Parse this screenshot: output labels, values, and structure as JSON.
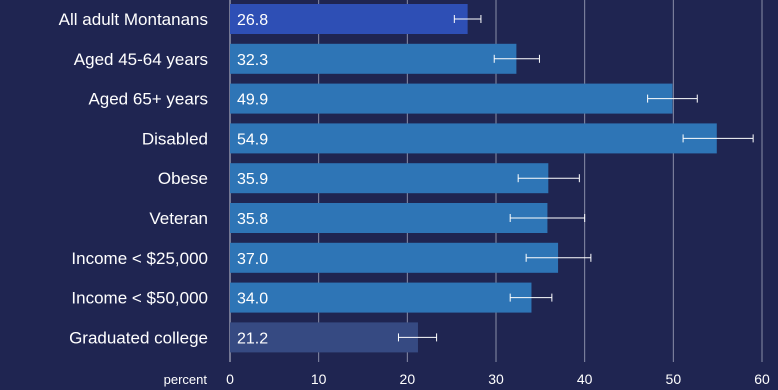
{
  "chart_data": {
    "type": "bar",
    "orientation": "horizontal",
    "title": "",
    "xlabel": "percent",
    "ylabel": "",
    "xlim": [
      0,
      60
    ],
    "xticks": [
      0,
      10,
      20,
      30,
      40,
      50,
      60
    ],
    "grid": "vertical",
    "legend": "none",
    "categories": [
      "All adult Montanans",
      "Aged 45-64 years",
      "Aged 65+ years",
      "Disabled",
      "Obese",
      "Veteran",
      "Income < $25,000",
      "Income < $50,000",
      "Graduated college"
    ],
    "values": [
      26.8,
      32.3,
      49.9,
      54.9,
      35.9,
      35.8,
      37.0,
      34.0,
      21.2
    ],
    "value_labels": [
      "26.8",
      "32.3",
      "49.9",
      "54.9",
      "35.9",
      "35.8",
      "37.0",
      "34.0",
      "21.2"
    ],
    "error_low": [
      25.3,
      29.8,
      47.1,
      51.1,
      32.5,
      31.6,
      33.4,
      31.6,
      19.0
    ],
    "error_high": [
      28.3,
      34.9,
      52.7,
      59.0,
      39.4,
      40.0,
      40.7,
      36.3,
      23.3
    ],
    "bar_colors": [
      "#2e4fb5",
      "#2e75b6",
      "#2e75b6",
      "#2e75b6",
      "#2e75b6",
      "#2e75b6",
      "#2e75b6",
      "#2e75b6",
      "#364a82"
    ]
  },
  "colors": {
    "background": "#1f2551",
    "gridline": "#8a8fa8",
    "text": "#ffffff",
    "errorbar": "#ffffff"
  }
}
